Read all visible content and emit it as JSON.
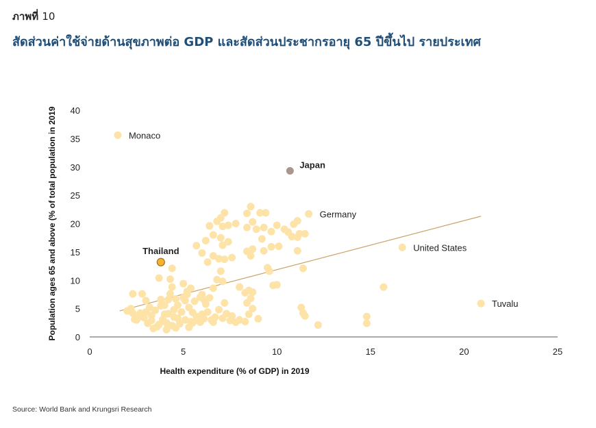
{
  "header": {
    "figure_label": "ภาพที่",
    "figure_number": "10",
    "title": "สัดส่วนค่าใช้จ่ายด้านสุขภาพต่อ GDP และสัดส่วนประชากรอายุ 65 ปีขึ้นไป รายประเทศ"
  },
  "source": "Source: World Bank and Krungsri Research",
  "colors": {
    "points": "#fde3a7",
    "japan": "#a8968f",
    "thailand_fill": "#f5b333",
    "thailand_stroke": "#a86a12",
    "thailand_label": "#c5641a",
    "japan_label": "#7a6b65",
    "trendline": "#c9a36a",
    "axis": "#555555"
  },
  "chart_data": {
    "type": "scatter",
    "xlabel": "Health expenditure (% of GDP) in 2019",
    "ylabel": "Population ages 65 and above (% of total population in 2019",
    "xlim": [
      0,
      25
    ],
    "ylim": [
      0,
      40
    ],
    "xticks": [
      "0",
      "5",
      "10",
      "15",
      "20",
      "25"
    ],
    "yticks": [
      "0",
      "5",
      "10",
      "15",
      "20",
      "25",
      "30",
      "35",
      "40"
    ],
    "grid": false,
    "trendline": {
      "x": [
        1.6,
        20.9
      ],
      "y": [
        4.6,
        21.3
      ]
    },
    "annotations": [
      {
        "label": "Monaco",
        "x": 1.5,
        "y": 35.6,
        "style": "normal"
      },
      {
        "label": "Japan",
        "x": 10.7,
        "y": 29.3,
        "style": "japan"
      },
      {
        "label": "Germany",
        "x": 11.7,
        "y": 21.7,
        "style": "normal"
      },
      {
        "label": "United States",
        "x": 16.7,
        "y": 15.8,
        "style": "normal"
      },
      {
        "label": "Tuvalu",
        "x": 20.9,
        "y": 5.9,
        "style": "normal"
      },
      {
        "label": "Thailand",
        "x": 3.8,
        "y": 13.2,
        "style": "thailand"
      }
    ],
    "points": [
      [
        2.3,
        7.6
      ],
      [
        2.8,
        7.6
      ],
      [
        3.0,
        6.4
      ],
      [
        2.2,
        5.0
      ],
      [
        2.5,
        3.0
      ],
      [
        2.9,
        3.4
      ],
      [
        3.1,
        2.4
      ],
      [
        3.3,
        2.9
      ],
      [
        3.6,
        1.8
      ],
      [
        3.4,
        1.5
      ],
      [
        3.7,
        2.2
      ],
      [
        3.9,
        3.1
      ],
      [
        4.1,
        2.5
      ],
      [
        4.2,
        4.1
      ],
      [
        4.4,
        2.0
      ],
      [
        4.6,
        1.6
      ],
      [
        4.7,
        3.3
      ],
      [
        4.5,
        4.8
      ],
      [
        4.0,
        5.6
      ],
      [
        3.8,
        6.6
      ],
      [
        4.3,
        7.6
      ],
      [
        4.4,
        8.8
      ],
      [
        4.3,
        10.2
      ],
      [
        3.7,
        10.4
      ],
      [
        4.4,
        12.1
      ],
      [
        5.0,
        9.4
      ],
      [
        5.2,
        8.0
      ],
      [
        5.1,
        6.4
      ],
      [
        5.3,
        5.2
      ],
      [
        5.5,
        4.3
      ],
      [
        5.7,
        3.6
      ],
      [
        5.4,
        2.7
      ],
      [
        5.1,
        3.0
      ],
      [
        5.9,
        2.6
      ],
      [
        6.1,
        3.2
      ],
      [
        6.3,
        4.4
      ],
      [
        6.5,
        3.0
      ],
      [
        6.2,
        5.8
      ],
      [
        6.4,
        6.9
      ],
      [
        6.0,
        7.5
      ],
      [
        6.6,
        8.6
      ],
      [
        6.8,
        10.1
      ],
      [
        7.1,
        9.8
      ],
      [
        7.0,
        11.6
      ],
      [
        6.6,
        14.3
      ],
      [
        6.9,
        13.8
      ],
      [
        7.2,
        13.7
      ],
      [
        7.6,
        14.0
      ],
      [
        7.4,
        16.8
      ],
      [
        7.1,
        16.2
      ],
      [
        7.0,
        17.5
      ],
      [
        6.3,
        13.2
      ],
      [
        6.0,
        14.8
      ],
      [
        5.7,
        16.1
      ],
      [
        6.2,
        17.0
      ],
      [
        6.6,
        18.0
      ],
      [
        6.8,
        20.4
      ],
      [
        7.1,
        19.5
      ],
      [
        7.4,
        19.7
      ],
      [
        7.0,
        21.0
      ],
      [
        7.2,
        21.9
      ],
      [
        6.4,
        19.6
      ],
      [
        7.8,
        20.0
      ],
      [
        8.4,
        21.8
      ],
      [
        8.6,
        23.0
      ],
      [
        8.7,
        20.3
      ],
      [
        9.1,
        21.9
      ],
      [
        9.4,
        21.9
      ],
      [
        8.4,
        19.3
      ],
      [
        8.9,
        19.0
      ],
      [
        9.3,
        19.3
      ],
      [
        9.7,
        18.6
      ],
      [
        10.0,
        19.7
      ],
      [
        10.4,
        19.0
      ],
      [
        10.6,
        18.5
      ],
      [
        10.9,
        19.9
      ],
      [
        11.1,
        20.5
      ],
      [
        11.2,
        18.2
      ],
      [
        11.5,
        18.2
      ],
      [
        10.8,
        17.7
      ],
      [
        11.1,
        17.6
      ],
      [
        9.7,
        15.9
      ],
      [
        9.3,
        15.2
      ],
      [
        8.7,
        15.5
      ],
      [
        8.4,
        15.1
      ],
      [
        8.6,
        14.3
      ],
      [
        9.2,
        17.3
      ],
      [
        10.1,
        16.0
      ],
      [
        11.1,
        15.2
      ],
      [
        9.5,
        12.2
      ],
      [
        9.6,
        11.6
      ],
      [
        9.8,
        9.1
      ],
      [
        10.0,
        9.2
      ],
      [
        11.4,
        12.1
      ],
      [
        11.3,
        5.2
      ],
      [
        11.4,
        4.2
      ],
      [
        11.5,
        3.7
      ],
      [
        12.2,
        2.1
      ],
      [
        14.8,
        3.6
      ],
      [
        14.8,
        2.4
      ],
      [
        15.7,
        8.8
      ],
      [
        8.0,
        8.8
      ],
      [
        8.3,
        7.8
      ],
      [
        8.5,
        8.2
      ],
      [
        8.7,
        7.9
      ],
      [
        8.6,
        6.8
      ],
      [
        8.4,
        6.0
      ],
      [
        8.7,
        5.0
      ],
      [
        8.5,
        4.0
      ],
      [
        9.0,
        3.2
      ],
      [
        8.3,
        2.7
      ],
      [
        8.0,
        3.0
      ],
      [
        7.8,
        2.6
      ],
      [
        7.6,
        3.7
      ],
      [
        7.3,
        4.1
      ],
      [
        7.1,
        3.3
      ],
      [
        6.9,
        4.8
      ],
      [
        7.2,
        6.0
      ],
      [
        6.6,
        2.6
      ],
      [
        5.8,
        2.9
      ],
      [
        5.3,
        1.7
      ],
      [
        4.8,
        2.3
      ],
      [
        4.1,
        1.3
      ],
      [
        3.5,
        4.7
      ],
      [
        3.2,
        5.2
      ],
      [
        2.6,
        3.5
      ],
      [
        2.3,
        4.2
      ],
      [
        2.0,
        4.6
      ],
      [
        3.0,
        4.4
      ],
      [
        4.9,
        4.4
      ],
      [
        5.4,
        8.6
      ],
      [
        5.0,
        6.9
      ],
      [
        4.7,
        5.6
      ],
      [
        5.6,
        6.3
      ],
      [
        6.1,
        6.6
      ],
      [
        5.9,
        7.0
      ],
      [
        5.2,
        7.5
      ],
      [
        4.6,
        6.7
      ],
      [
        4.2,
        6.6
      ],
      [
        3.8,
        5.5
      ],
      [
        4.0,
        4.0
      ],
      [
        3.3,
        3.8
      ],
      [
        2.7,
        4.2
      ],
      [
        2.4,
        3.1
      ],
      [
        3.9,
        2.8
      ],
      [
        4.5,
        3.5
      ],
      [
        5.5,
        2.5
      ],
      [
        6.7,
        3.5
      ],
      [
        7.5,
        2.9
      ],
      [
        6.0,
        4.0
      ]
    ]
  }
}
